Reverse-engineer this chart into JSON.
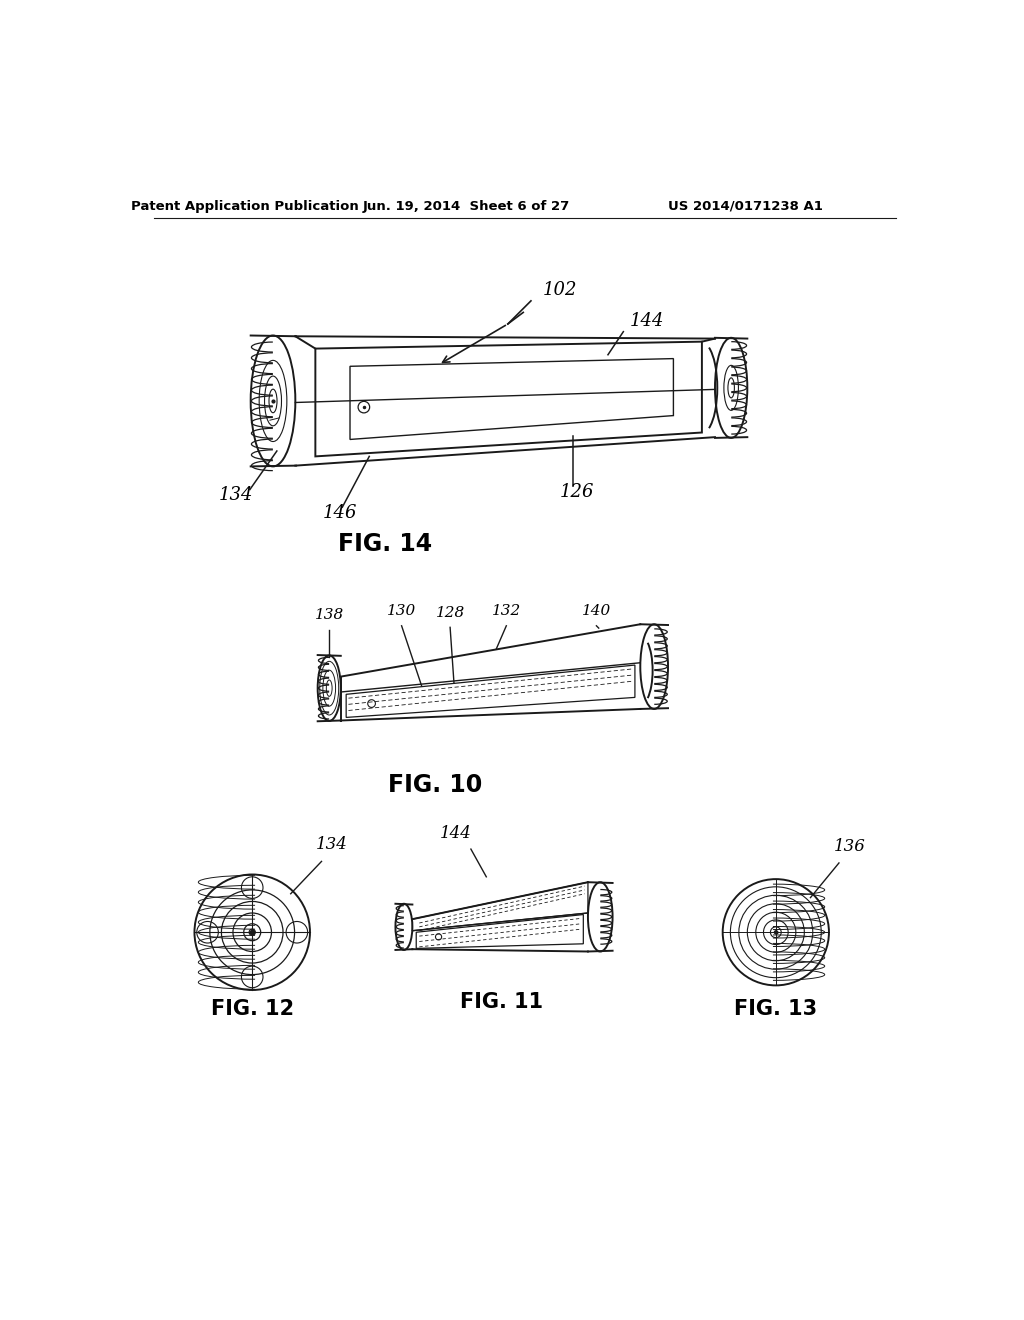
{
  "background_color": "#ffffff",
  "header_left": "Patent Application Publication",
  "header_mid": "Jun. 19, 2014  Sheet 6 of 27",
  "header_right": "US 2014/0171238 A1",
  "line_color": "#1a1a1a",
  "text_color": "#000000"
}
